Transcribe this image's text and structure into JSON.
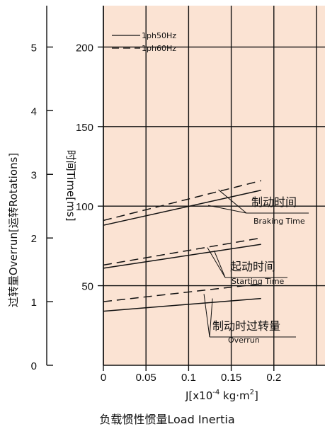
{
  "chart_data": {
    "type": "line",
    "xlabel": "J[x10",
    "xlabel_exp": "-4",
    "xlabel_unit": " kg·m",
    "xlabel_unit_exp": "2",
    "xlabel_close": "]",
    "caption": "负载惯性惯量Load Inertia",
    "ylabel_time": "时间Time[ms]",
    "ylabel_overrun": "过转量Overrun[运转Rotations]",
    "xlim": [
      0,
      0.26
    ],
    "ylim_time": [
      0,
      226
    ],
    "ylim_overrun": [
      0,
      5.65
    ],
    "x_ticks": [
      0,
      0.05,
      0.1,
      0.15,
      0.2
    ],
    "x_tick_labels": [
      "0",
      "0.05",
      "0.1",
      "0.15",
      "0.2"
    ],
    "time_ticks": [
      50,
      100,
      150,
      200
    ],
    "time_tick_labels": [
      "50",
      "100",
      "150",
      "200"
    ],
    "overrun_ticks": [
      0,
      1,
      2,
      3,
      4,
      5
    ],
    "overrun_tick_labels": [
      "0",
      "1",
      "2",
      "3",
      "4",
      "5"
    ],
    "legend": [
      {
        "name": "1ph50Hz",
        "style": "solid"
      },
      {
        "name": "1ph60Hz",
        "style": "dashed"
      }
    ],
    "series": [
      {
        "group": "braking",
        "style": "solid",
        "x": [
          0,
          0.185
        ],
        "y_time": [
          88,
          110
        ]
      },
      {
        "group": "braking",
        "style": "dashed",
        "x": [
          0,
          0.185
        ],
        "y_time": [
          91,
          116
        ]
      },
      {
        "group": "starting",
        "style": "solid",
        "x": [
          0,
          0.185
        ],
        "y_time": [
          61,
          76
        ]
      },
      {
        "group": "starting",
        "style": "dashed",
        "x": [
          0,
          0.185
        ],
        "y_time": [
          63,
          80
        ]
      },
      {
        "group": "overrun",
        "style": "solid",
        "x": [
          0,
          0.185
        ],
        "y_overrun": [
          0.85,
          1.05
        ]
      },
      {
        "group": "overrun",
        "style": "dashed",
        "x": [
          0,
          0.185
        ],
        "y_overrun": [
          1.0,
          1.28
        ]
      }
    ],
    "annotations": [
      {
        "group": "braking",
        "cn": "制动时间",
        "en": "Braking Time"
      },
      {
        "group": "starting",
        "cn": "起动时间",
        "en": "Starting Time"
      },
      {
        "group": "overrun",
        "cn": "制动时过转量",
        "en": "Overrun"
      }
    ],
    "colors": {
      "plot_bg": "#fbe3d3",
      "line": "#111111",
      "grid": "#111111"
    },
    "grid": true
  }
}
